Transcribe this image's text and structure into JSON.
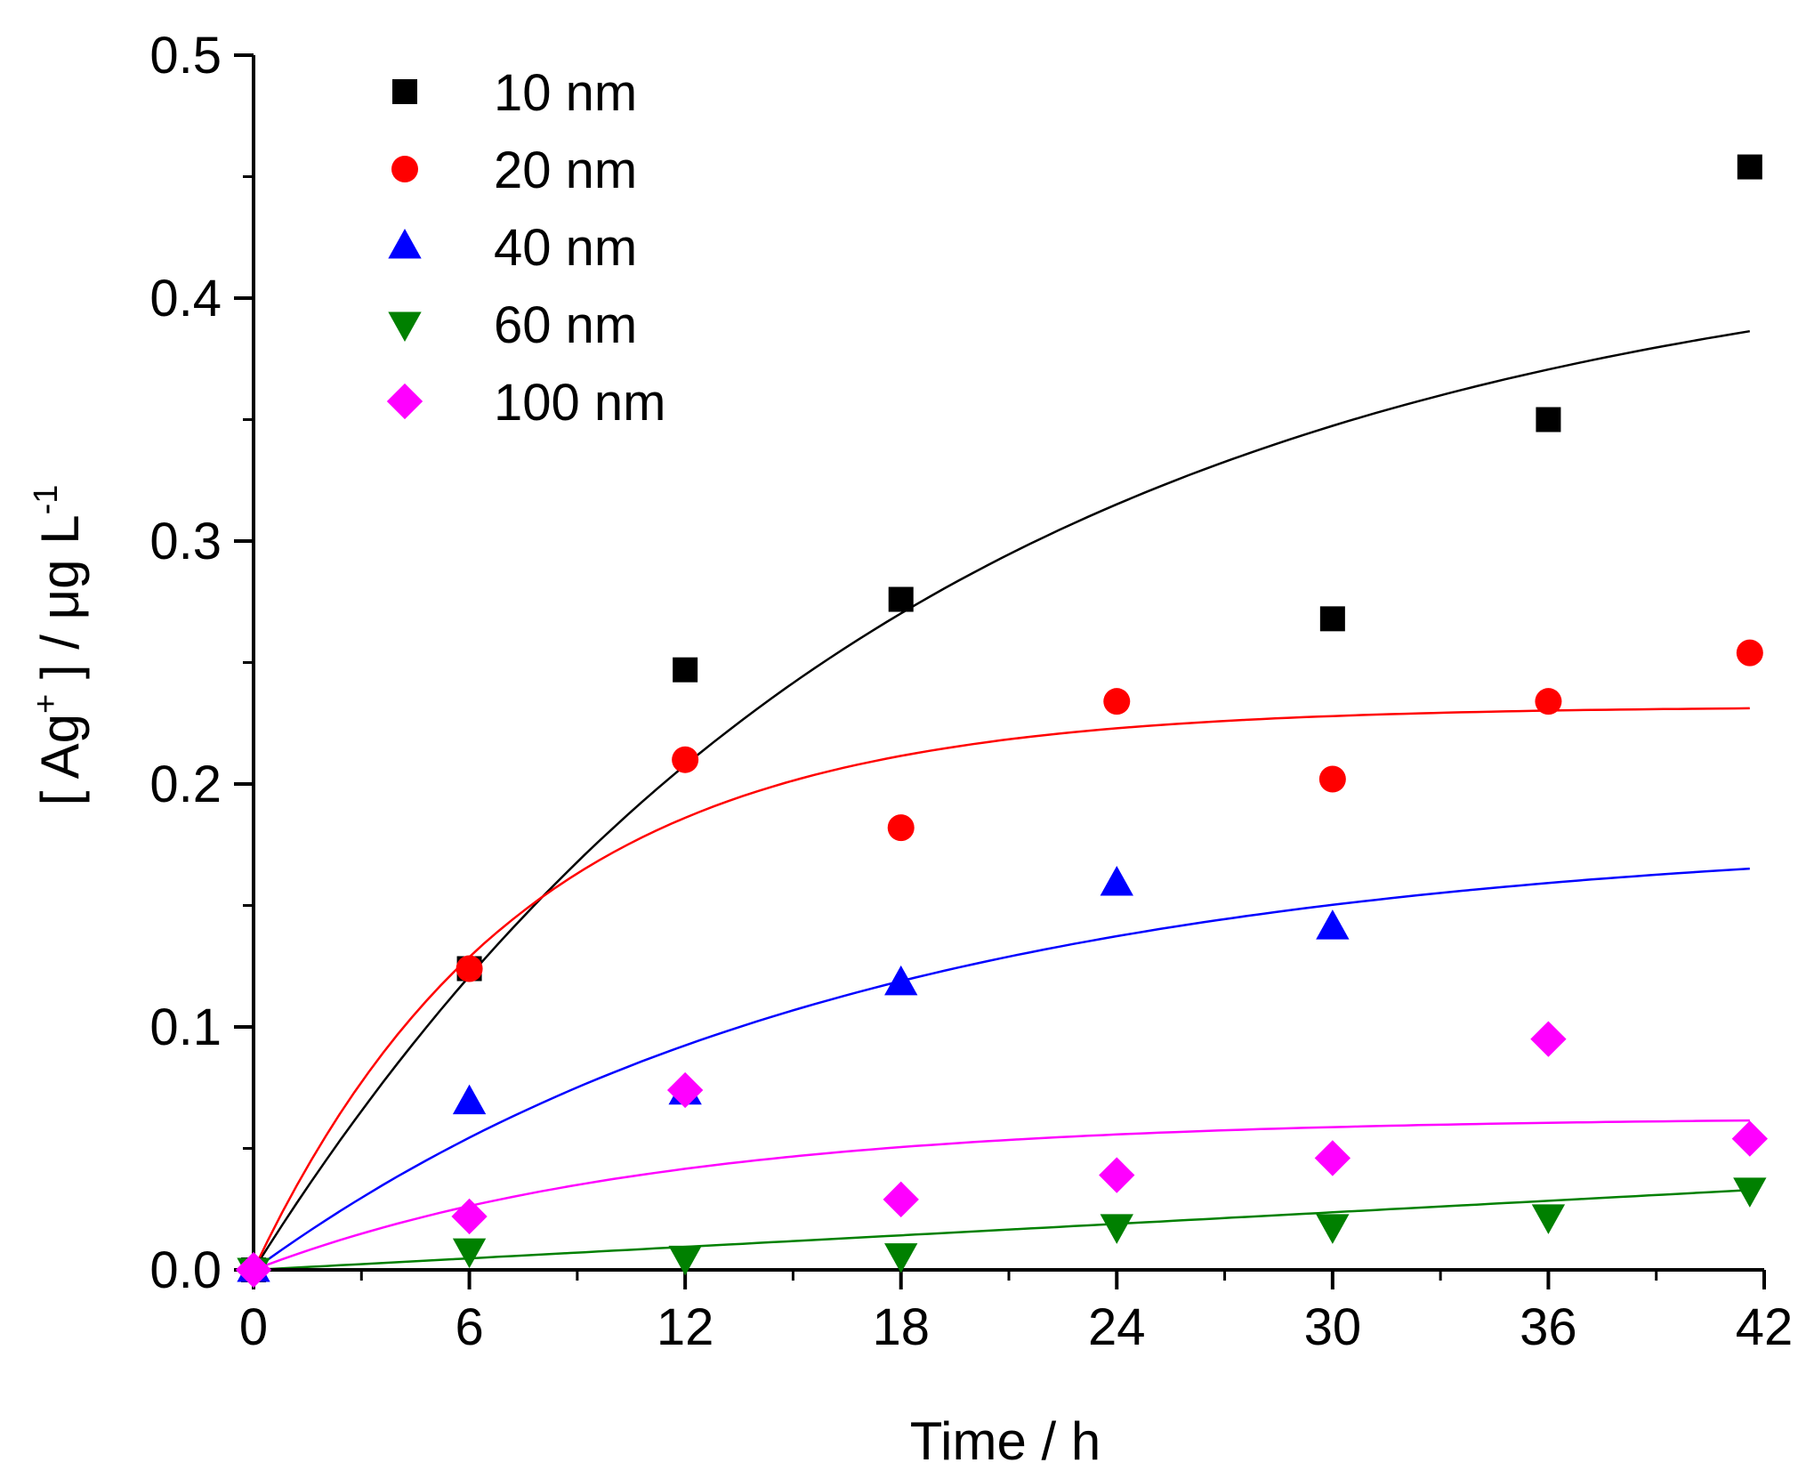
{
  "chart_data": {
    "type": "scatter",
    "xlabel": "Time / h",
    "ylabel": {
      "open_bracket": "[ Ag",
      "superscript": "+",
      "middle": " ] / μg L",
      "unit_superscript": "-1"
    },
    "xlim": [
      0,
      42
    ],
    "ylim": [
      0,
      0.5
    ],
    "x_ticks": [
      0,
      6,
      12,
      18,
      24,
      30,
      36,
      42
    ],
    "x_tick_labels": [
      "0",
      "6",
      "12",
      "18",
      "24",
      "30",
      "36",
      "42"
    ],
    "y_ticks": [
      0,
      0.1,
      0.2,
      0.3,
      0.4,
      0.5
    ],
    "y_tick_labels": [
      "0.0",
      "0.1",
      "0.2",
      "0.3",
      "0.4",
      "0.5"
    ],
    "grid": false,
    "legend_position": "top-left",
    "series": [
      {
        "name": "10 nm",
        "color": "#000000",
        "marker": "square",
        "x": [
          0,
          6,
          12,
          18,
          30,
          36,
          41.6
        ],
        "y": [
          0,
          0.124,
          0.247,
          0.276,
          0.268,
          0.35,
          0.454
        ],
        "fit": {
          "model": "A*(1-exp(-k*t))",
          "A": 0.43,
          "k": 0.055
        }
      },
      {
        "name": "20 nm",
        "color": "#ff0000",
        "marker": "circle",
        "x": [
          0,
          6,
          12,
          18,
          24,
          30,
          36,
          41.6
        ],
        "y": [
          0,
          0.124,
          0.21,
          0.182,
          0.234,
          0.202,
          0.234,
          0.254
        ],
        "fit": {
          "model": "A*(1-exp(-k*t))",
          "A": 0.232,
          "k": 0.135
        }
      },
      {
        "name": "40 nm",
        "color": "#0000ff",
        "marker": "triangle-up",
        "x": [
          0,
          6,
          12,
          18,
          24,
          30
        ],
        "y": [
          0,
          0.069,
          0.073,
          0.118,
          0.159,
          0.141
        ],
        "fit": {
          "model": "A*(1-exp(-k*t))",
          "A": 0.18,
          "k": 0.06
        }
      },
      {
        "name": "60 nm",
        "color": "#008000",
        "marker": "triangle-down",
        "x": [
          0,
          6,
          12,
          18,
          24,
          30,
          36,
          41.6
        ],
        "y": [
          0,
          0.008,
          0.005,
          0.006,
          0.018,
          0.018,
          0.022,
          0.033
        ],
        "fit": {
          "model": "a*t",
          "a": 0.00079
        }
      },
      {
        "name": "100 nm",
        "color": "#ff00ff",
        "marker": "diamond",
        "x": [
          0,
          6,
          12,
          18,
          24,
          30,
          36,
          41.6
        ],
        "y": [
          0,
          0.022,
          0.074,
          0.029,
          0.039,
          0.046,
          0.095,
          0.054
        ],
        "fit": {
          "model": "A*(1-exp(-k*t))",
          "A": 0.063,
          "k": 0.09
        }
      }
    ]
  }
}
